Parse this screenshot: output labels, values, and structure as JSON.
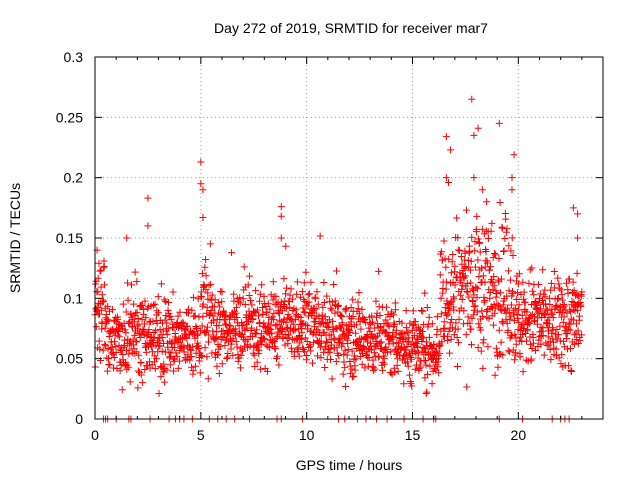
{
  "chart_data": {
    "type": "scatter",
    "title": "Day 272 of 2019, SRMTID for receiver mar7",
    "xlabel": "GPS time / hours",
    "ylabel": "SRMTID / TECUs",
    "xlim": [
      0,
      24
    ],
    "ylim": [
      0,
      0.3
    ],
    "x_ticks": [
      0,
      5,
      10,
      15,
      20
    ],
    "y_ticks": [
      0,
      0.05,
      0.1,
      0.15,
      0.2,
      0.25,
      0.3
    ],
    "x_tick_labels": [
      "0",
      "5",
      "10",
      "15",
      "20"
    ],
    "y_tick_labels": [
      "0",
      "0.05",
      "0.1",
      "0.15",
      "0.2",
      "0.25",
      "0.3"
    ],
    "grid": true,
    "marker": "+",
    "color": "#ff0000",
    "segments": [
      {
        "t0": 0.0,
        "t1": 0.5,
        "mean": 0.095,
        "spread": 0.022
      },
      {
        "t0": 0.5,
        "t1": 1.5,
        "mean": 0.063,
        "spread": 0.016
      },
      {
        "t0": 1.5,
        "t1": 2.0,
        "mean": 0.078,
        "spread": 0.022
      },
      {
        "t0": 2.0,
        "t1": 3.5,
        "mean": 0.066,
        "spread": 0.017
      },
      {
        "t0": 3.5,
        "t1": 5.0,
        "mean": 0.066,
        "spread": 0.016
      },
      {
        "t0": 5.0,
        "t1": 5.5,
        "mean": 0.088,
        "spread": 0.026
      },
      {
        "t0": 5.5,
        "t1": 8.5,
        "mean": 0.075,
        "spread": 0.016
      },
      {
        "t0": 8.5,
        "t1": 11.0,
        "mean": 0.078,
        "spread": 0.016
      },
      {
        "t0": 11.0,
        "t1": 13.0,
        "mean": 0.069,
        "spread": 0.016
      },
      {
        "t0": 13.0,
        "t1": 14.5,
        "mean": 0.066,
        "spread": 0.016
      },
      {
        "t0": 14.5,
        "t1": 16.3,
        "mean": 0.059,
        "spread": 0.015
      },
      {
        "t0": 16.3,
        "t1": 17.0,
        "mean": 0.1,
        "spread": 0.028
      },
      {
        "t0": 17.0,
        "t1": 19.8,
        "mean": 0.108,
        "spread": 0.03
      },
      {
        "t0": 19.8,
        "t1": 21.0,
        "mean": 0.082,
        "spread": 0.022
      },
      {
        "t0": 21.0,
        "t1": 22.0,
        "mean": 0.078,
        "spread": 0.018
      },
      {
        "t0": 22.0,
        "t1": 23.0,
        "mean": 0.082,
        "spread": 0.022
      }
    ],
    "notable_points": [
      {
        "x": 0.1,
        "y": 0.14
      },
      {
        "x": 1.5,
        "y": 0.15
      },
      {
        "x": 2.5,
        "y": 0.183
      },
      {
        "x": 2.5,
        "y": 0.16
      },
      {
        "x": 5.0,
        "y": 0.213
      },
      {
        "x": 5.0,
        "y": 0.195
      },
      {
        "x": 5.1,
        "y": 0.19
      },
      {
        "x": 5.1,
        "y": 0.167
      },
      {
        "x": 8.8,
        "y": 0.176
      },
      {
        "x": 8.8,
        "y": 0.168
      },
      {
        "x": 8.8,
        "y": 0.15
      },
      {
        "x": 16.6,
        "y": 0.234
      },
      {
        "x": 16.8,
        "y": 0.223
      },
      {
        "x": 16.6,
        "y": 0.2
      },
      {
        "x": 16.7,
        "y": 0.196
      },
      {
        "x": 17.8,
        "y": 0.265
      },
      {
        "x": 18.1,
        "y": 0.241
      },
      {
        "x": 17.9,
        "y": 0.235
      },
      {
        "x": 17.9,
        "y": 0.2
      },
      {
        "x": 18.3,
        "y": 0.19
      },
      {
        "x": 19.1,
        "y": 0.245
      },
      {
        "x": 19.8,
        "y": 0.219
      },
      {
        "x": 19.7,
        "y": 0.2
      },
      {
        "x": 19.7,
        "y": 0.19
      },
      {
        "x": 22.6,
        "y": 0.175
      },
      {
        "x": 22.8,
        "y": 0.17
      },
      {
        "x": 18.5,
        "y": 0.18
      },
      {
        "x": 22.8,
        "y": 0.15
      },
      {
        "x": 15.5,
        "y": 0.0
      },
      {
        "x": 16.1,
        "y": 0.0
      },
      {
        "x": 20.2,
        "y": 0.0
      }
    ],
    "zero_value_times": [
      0.4,
      0.5,
      0.6,
      1.0,
      1.6,
      1.7,
      2.6,
      3.5,
      3.8,
      4.0,
      4.2,
      4.6,
      5.4,
      5.8,
      6.2,
      6.6,
      7.3,
      8.6,
      8.8,
      9.8,
      11.5,
      11.8,
      12.4,
      12.8,
      13.3,
      13.8,
      14.6,
      16.0,
      19.1,
      21.6,
      22.0,
      22.2,
      22.4
    ]
  }
}
